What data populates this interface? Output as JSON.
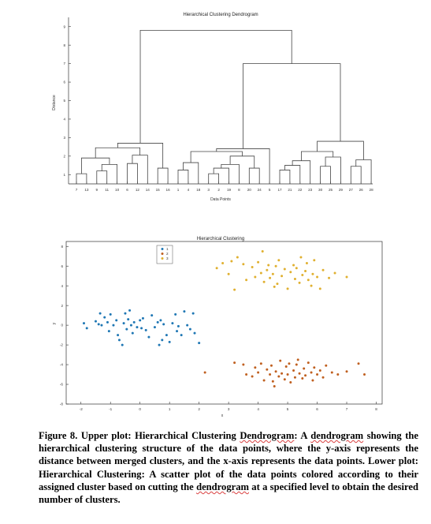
{
  "dendrogram": {
    "title": "Hierarchical Clustering Dendrogram",
    "ylabel": "Distance",
    "xlabel": "Data Points",
    "yticks": [
      "9",
      "8",
      "7",
      "6",
      "5",
      "4",
      "3",
      "2",
      "1"
    ],
    "leaf_labels": [
      "7",
      "13",
      "9",
      "11",
      "10",
      "6",
      "12",
      "14",
      "15",
      "16",
      "1",
      "4",
      "18",
      "3",
      "2",
      "19",
      "8",
      "20",
      "24",
      "5",
      "17",
      "21",
      "22",
      "23",
      "30",
      "25",
      "29",
      "27",
      "26",
      "28"
    ]
  },
  "scatter": {
    "title": "Hierarchical Clustering",
    "xlabel": "x",
    "ylabel": "y",
    "xticks": [
      "-2",
      "-1",
      "0",
      "1",
      "2",
      "3",
      "4",
      "5",
      "6",
      "7",
      "8"
    ],
    "yticks": [
      "8",
      "6",
      "4",
      "2",
      "0",
      "-2",
      "-4",
      "-6",
      "-8"
    ],
    "legend": [
      {
        "label": "1",
        "color": "#1f77b4"
      },
      {
        "label": "2",
        "color": "#c06020"
      },
      {
        "label": "3",
        "color": "#e0b030"
      }
    ]
  },
  "chart_data": [
    {
      "type": "dendrogram",
      "title": "Hierarchical Clustering Dendrogram",
      "xlabel": "Data Points",
      "ylabel": "Distance",
      "ylim": [
        0.5,
        9.5
      ],
      "leaves": [
        "7",
        "13",
        "9",
        "11",
        "10",
        "6",
        "12",
        "14",
        "15",
        "16",
        "1",
        "4",
        "18",
        "3",
        "2",
        "19",
        "8",
        "20",
        "24",
        "5",
        "17",
        "21",
        "22",
        "23",
        "30",
        "25",
        "29",
        "27",
        "26",
        "28"
      ],
      "merge_heights": {
        "root": 8.8,
        "right_group": 7.0,
        "left_cluster": 2.7,
        "middle_cluster": 2.4,
        "right_cluster": 2.8
      }
    },
    {
      "type": "scatter",
      "title": "Hierarchical Clustering",
      "xlabel": "x",
      "ylabel": "y",
      "xlim": [
        -2.5,
        8.2
      ],
      "ylim": [
        -8,
        8.5
      ],
      "grid": false,
      "legend_position": "top-center",
      "series": [
        {
          "name": "1",
          "color": "#1f77b4",
          "points": [
            [
              -1.9,
              0.2
            ],
            [
              -1.8,
              -0.3
            ],
            [
              -1.5,
              0.4
            ],
            [
              -1.4,
              0.1
            ],
            [
              -1.35,
              1.2
            ],
            [
              -1.3,
              0.0
            ],
            [
              -1.2,
              0.8
            ],
            [
              -1.1,
              0.3
            ],
            [
              -1.05,
              -0.6
            ],
            [
              -1.0,
              1.1
            ],
            [
              -0.9,
              0.0
            ],
            [
              -0.8,
              0.5
            ],
            [
              -0.75,
              -1.0
            ],
            [
              -0.7,
              -1.5
            ],
            [
              -0.6,
              -2.0
            ],
            [
              -0.55,
              0.2
            ],
            [
              -0.5,
              1.2
            ],
            [
              -0.45,
              -0.4
            ],
            [
              -0.4,
              0.6
            ],
            [
              -0.35,
              1.5
            ],
            [
              -0.3,
              0.0
            ],
            [
              -0.25,
              -0.8
            ],
            [
              -0.2,
              0.3
            ],
            [
              -0.1,
              -0.2
            ],
            [
              0.0,
              0.5
            ],
            [
              0.05,
              -0.3
            ],
            [
              0.1,
              0.7
            ],
            [
              0.2,
              -0.5
            ],
            [
              0.3,
              -1.2
            ],
            [
              0.4,
              1.0
            ],
            [
              0.5,
              -0.2
            ],
            [
              0.6,
              0.3
            ],
            [
              0.65,
              -2.0
            ],
            [
              0.7,
              0.5
            ],
            [
              0.75,
              -1.5
            ],
            [
              0.8,
              0.1
            ],
            [
              0.9,
              -1.0
            ],
            [
              1.0,
              -1.7
            ],
            [
              1.1,
              0.2
            ],
            [
              1.2,
              1.1
            ],
            [
              1.25,
              -0.6
            ],
            [
              1.3,
              -0.1
            ],
            [
              1.4,
              -1.0
            ],
            [
              1.5,
              1.4
            ],
            [
              1.6,
              0.0
            ],
            [
              1.7,
              -0.4
            ],
            [
              1.8,
              1.2
            ],
            [
              1.85,
              -0.8
            ],
            [
              2.0,
              -1.8
            ]
          ]
        },
        {
          "name": "2",
          "color": "#c06020",
          "points": [
            [
              2.2,
              -4.8
            ],
            [
              3.2,
              -3.8
            ],
            [
              3.5,
              -4.0
            ],
            [
              3.6,
              -5.0
            ],
            [
              3.8,
              -5.2
            ],
            [
              3.9,
              -4.3
            ],
            [
              4.0,
              -4.8
            ],
            [
              4.1,
              -3.9
            ],
            [
              4.2,
              -5.6
            ],
            [
              4.3,
              -4.5
            ],
            [
              4.4,
              -5.0
            ],
            [
              4.45,
              -4.1
            ],
            [
              4.5,
              -5.7
            ],
            [
              4.55,
              -6.2
            ],
            [
              4.6,
              -4.7
            ],
            [
              4.7,
              -5.2
            ],
            [
              4.75,
              -3.6
            ],
            [
              4.8,
              -4.9
            ],
            [
              4.9,
              -5.5
            ],
            [
              4.95,
              -4.2
            ],
            [
              5.0,
              -5.0
            ],
            [
              5.05,
              -3.9
            ],
            [
              5.1,
              -5.8
            ],
            [
              5.2,
              -4.6
            ],
            [
              5.25,
              -5.3
            ],
            [
              5.3,
              -4.0
            ],
            [
              5.35,
              -3.5
            ],
            [
              5.4,
              -4.9
            ],
            [
              5.5,
              -5.4
            ],
            [
              5.55,
              -4.4
            ],
            [
              5.6,
              -5.1
            ],
            [
              5.7,
              -3.8
            ],
            [
              5.8,
              -4.8
            ],
            [
              5.85,
              -5.6
            ],
            [
              5.9,
              -4.3
            ],
            [
              6.0,
              -5.0
            ],
            [
              6.1,
              -4.6
            ],
            [
              6.2,
              -5.3
            ],
            [
              6.3,
              -4.1
            ],
            [
              6.5,
              -4.8
            ],
            [
              6.7,
              -5.0
            ],
            [
              7.0,
              -4.7
            ],
            [
              7.4,
              -3.9
            ],
            [
              7.6,
              -5.0
            ]
          ]
        },
        {
          "name": "3",
          "color": "#e0b030",
          "points": [
            [
              2.6,
              5.8
            ],
            [
              2.8,
              6.3
            ],
            [
              3.0,
              5.2
            ],
            [
              3.1,
              6.5
            ],
            [
              3.2,
              3.6
            ],
            [
              3.3,
              6.9
            ],
            [
              3.5,
              6.2
            ],
            [
              3.6,
              4.6
            ],
            [
              3.8,
              5.9
            ],
            [
              3.9,
              4.9
            ],
            [
              4.0,
              6.4
            ],
            [
              4.1,
              5.3
            ],
            [
              4.15,
              7.5
            ],
            [
              4.2,
              4.4
            ],
            [
              4.3,
              5.6
            ],
            [
              4.35,
              6.1
            ],
            [
              4.4,
              4.8
            ],
            [
              4.5,
              5.2
            ],
            [
              4.55,
              3.9
            ],
            [
              4.6,
              6.0
            ],
            [
              4.65,
              4.2
            ],
            [
              4.7,
              6.6
            ],
            [
              4.8,
              5.0
            ],
            [
              4.9,
              5.7
            ],
            [
              5.0,
              3.7
            ],
            [
              5.1,
              5.4
            ],
            [
              5.2,
              6.1
            ],
            [
              5.25,
              4.7
            ],
            [
              5.3,
              5.8
            ],
            [
              5.4,
              4.3
            ],
            [
              5.45,
              6.9
            ],
            [
              5.5,
              5.1
            ],
            [
              5.6,
              5.5
            ],
            [
              5.65,
              6.3
            ],
            [
              5.7,
              4.6
            ],
            [
              5.8,
              4.0
            ],
            [
              5.85,
              5.2
            ],
            [
              5.9,
              6.6
            ],
            [
              6.0,
              4.9
            ],
            [
              6.1,
              3.7
            ],
            [
              6.2,
              5.6
            ],
            [
              6.4,
              4.8
            ],
            [
              6.6,
              5.3
            ],
            [
              7.0,
              4.9
            ]
          ]
        }
      ]
    }
  ],
  "caption": {
    "label": "Figure 8. ",
    "upper_intro": "Upper plot: Hierarchical Clustering ",
    "dendrogram_word": "Dendrogram",
    "colon_a": ": A ",
    "dendrogram_word2": "dendrogram",
    "body1": " showing the hierarchical clustering structure of the data points, where the y-axis represents the distance between merged clusters, and the x-axis represents the data points. Lower plot: Hierarchical Clustering: A scatter plot of the data points colored according to their assigned cluster based on cutting the ",
    "dendrogram_word3": "dendrogram",
    "body2": " at a specified level to obtain the desired number of clusters."
  }
}
